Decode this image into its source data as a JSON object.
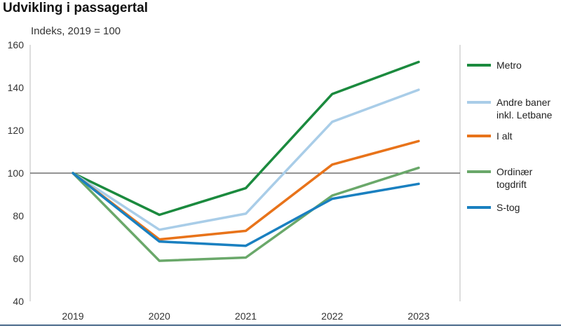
{
  "chart_data": {
    "type": "line",
    "title": "Udvikling i passagertal",
    "ylabel": "Indeks, 2019 = 100",
    "xlabel": "",
    "ylim": [
      40,
      160
    ],
    "yticks": [
      40,
      60,
      80,
      100,
      120,
      140,
      160
    ],
    "categories": [
      "2019",
      "2020",
      "2021",
      "2022",
      "2023"
    ],
    "reference_line": 100,
    "series": [
      {
        "name": "Metro",
        "color": "#1b8a3e",
        "values": [
          100,
          80.5,
          93,
          137,
          152
        ]
      },
      {
        "name": "Andre baner inkl. Letbane",
        "label_lines": [
          "Andre baner",
          "inkl. Letbane"
        ],
        "color": "#a9cde8",
        "values": [
          100,
          73.5,
          81,
          124,
          139
        ]
      },
      {
        "name": "I alt",
        "color": "#e8731a",
        "values": [
          100,
          69,
          73,
          104,
          115
        ]
      },
      {
        "name": "Ordinær togdrift",
        "label_lines": [
          "Ordinær",
          "togdrift"
        ],
        "color": "#6aa86a",
        "values": [
          100,
          59,
          60.5,
          89.5,
          102.5
        ]
      },
      {
        "name": "S-tog",
        "color": "#1a80c0",
        "values": [
          100,
          68,
          66,
          88,
          95
        ]
      }
    ]
  }
}
